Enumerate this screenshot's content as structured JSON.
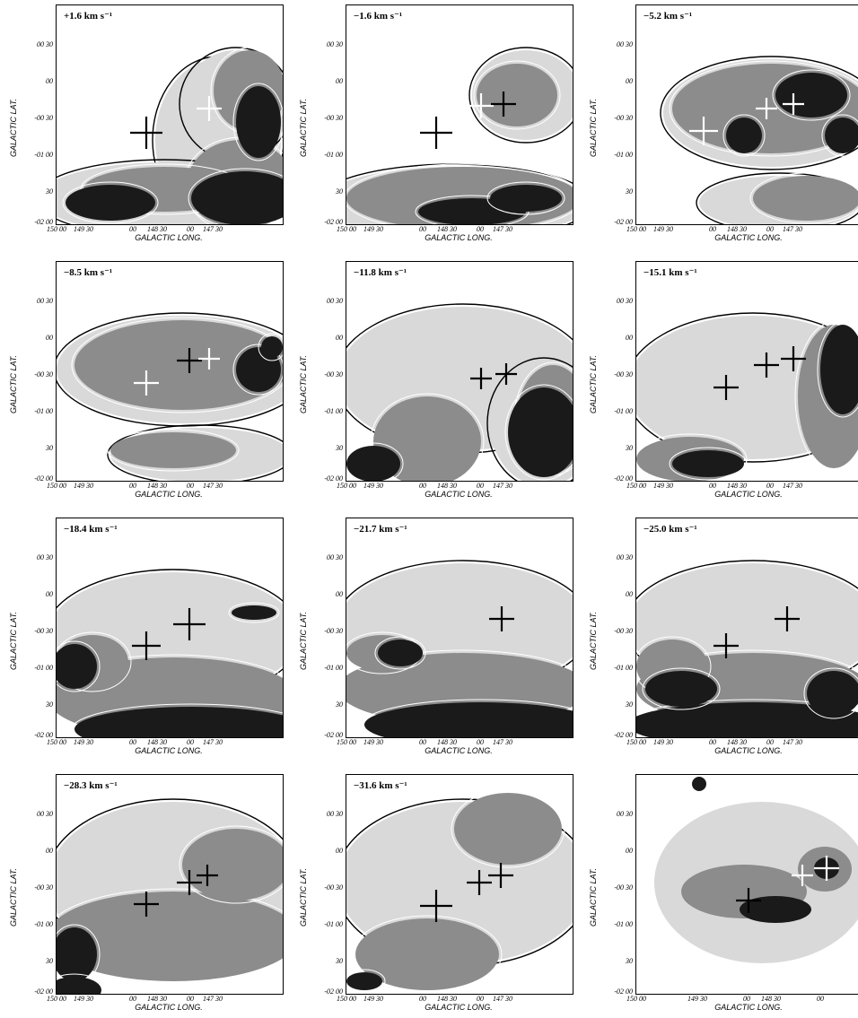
{
  "axes": {
    "xlabel": "GALACTIC LONG.",
    "ylabel": "GALACTIC LAT.",
    "xticks": [
      "150 00",
      "149 30",
      "00",
      "148 30",
      "00",
      "147 30"
    ],
    "yticks": [
      "00 30",
      "00",
      "-00 30",
      "-01 00",
      "30",
      "-02 00"
    ]
  },
  "last_panel_xticks": [
    "150 00",
    "149 30",
    "00",
    "148 30",
    "00"
  ],
  "panels": [
    {
      "velocity": "+1.6 km s⁻¹"
    },
    {
      "velocity": "−1.6 km s⁻¹"
    },
    {
      "velocity": "−5.2 km s⁻¹"
    },
    {
      "velocity": "−8.5 km s⁻¹"
    },
    {
      "velocity": "−11.8 km s⁻¹"
    },
    {
      "velocity": "−15.1 km s⁻¹"
    },
    {
      "velocity": "−18.4 km s⁻¹"
    },
    {
      "velocity": "−21.7 km s⁻¹"
    },
    {
      "velocity": "−25.0 km s⁻¹"
    },
    {
      "velocity": "−28.3 km s⁻¹"
    },
    {
      "velocity": "−31.6 km s⁻¹"
    },
    {
      "velocity": ""
    }
  ],
  "colors": {
    "emission_dark": "#1a1a1a",
    "emission_mid": "#8c8c8c",
    "emission_light": "#d9d9d9",
    "contour": "#000000"
  }
}
